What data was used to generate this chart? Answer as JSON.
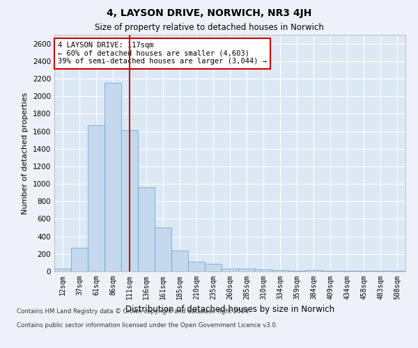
{
  "title1": "4, LAYSON DRIVE, NORWICH, NR3 4JH",
  "title2": "Size of property relative to detached houses in Norwich",
  "xlabel": "Distribution of detached houses by size in Norwich",
  "ylabel": "Number of detached properties",
  "categories": [
    "12sqm",
    "37sqm",
    "61sqm",
    "86sqm",
    "111sqm",
    "136sqm",
    "161sqm",
    "185sqm",
    "210sqm",
    "235sqm",
    "260sqm",
    "285sqm",
    "310sqm",
    "334sqm",
    "359sqm",
    "384sqm",
    "409sqm",
    "434sqm",
    "458sqm",
    "483sqm",
    "508sqm"
  ],
  "values": [
    30,
    270,
    1670,
    2150,
    1610,
    960,
    500,
    235,
    110,
    90,
    35,
    30,
    20,
    15,
    10,
    15,
    5,
    5,
    5,
    10,
    5
  ],
  "bar_color": "#c5d8ed",
  "bar_edge_color": "#5a9fd4",
  "vline_color": "#cc0000",
  "vline_index": 4.5,
  "annotation_text": "4 LAYSON DRIVE: 117sqm\n← 60% of detached houses are smaller (4,603)\n39% of semi-detached houses are larger (3,044) →",
  "annotation_box_color": "#ffffff",
  "annotation_box_edge_color": "#cc0000",
  "ylim": [
    0,
    2700
  ],
  "yticks": [
    0,
    200,
    400,
    600,
    800,
    1000,
    1200,
    1400,
    1600,
    1800,
    2000,
    2200,
    2400,
    2600
  ],
  "footer1": "Contains HM Land Registry data © Crown copyright and database right 2024.",
  "footer2": "Contains public sector information licensed under the Open Government Licence v3.0.",
  "bg_color": "#eef2f8",
  "plot_bg_color": "#dde8f5"
}
